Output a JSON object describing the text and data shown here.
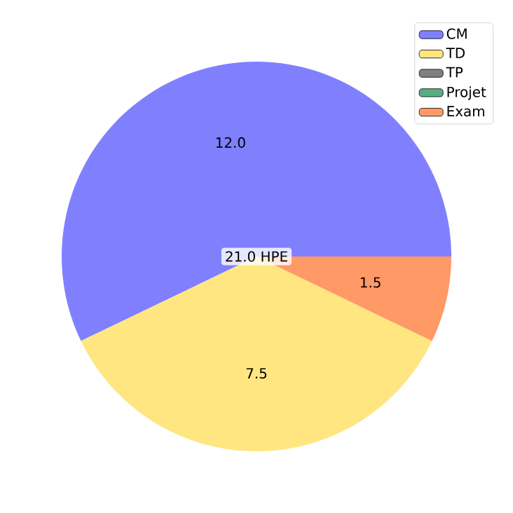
{
  "chart_data": {
    "type": "pie",
    "categories": [
      "CM",
      "TD",
      "TP",
      "Projet",
      "Exam"
    ],
    "values": [
      12.0,
      7.5,
      0,
      0,
      1.5
    ],
    "value_labels": [
      "12.0",
      "7.5",
      null,
      null,
      "1.5"
    ],
    "colors": [
      "#8080ff",
      "#ffe680",
      "#808080",
      "#5aad80",
      "#ff9966"
    ],
    "annotations": [
      "21.0 HPE"
    ],
    "legend": "top right"
  }
}
